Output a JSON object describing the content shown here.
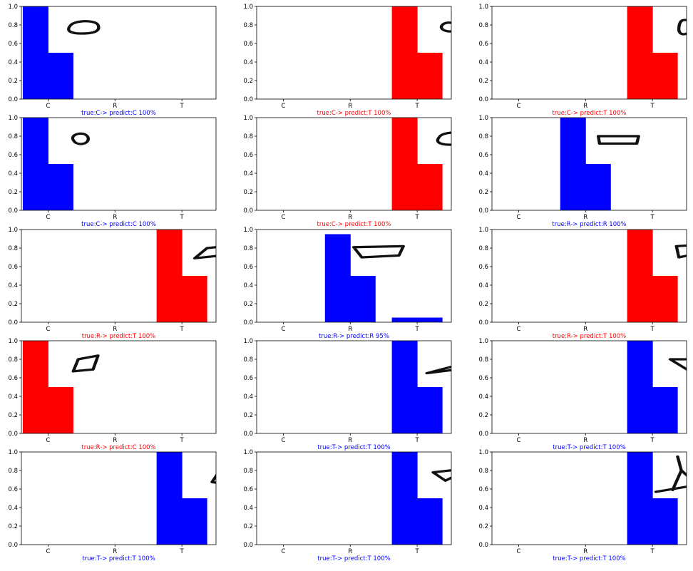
{
  "chart_data": [
    {
      "type": "bar",
      "categories": [
        "C",
        "R",
        "T"
      ],
      "values": [
        1.0,
        0.0,
        0.0
      ],
      "bar_color": "#0000ff",
      "ylim": [
        0,
        1
      ],
      "yticks": [
        "0.0",
        "0.2",
        "0.4",
        "0.6",
        "0.8",
        "1.0"
      ],
      "sketch": "oval",
      "caption": "true:C->  predict:C 100%",
      "caption_color": "#0000ff"
    },
    {
      "type": "bar",
      "categories": [
        "C",
        "R",
        "T"
      ],
      "values": [
        0.0,
        0.0,
        1.0
      ],
      "bar_color": "#ff0000",
      "ylim": [
        0,
        1
      ],
      "yticks": [
        "0.0",
        "0.2",
        "0.4",
        "0.6",
        "0.8",
        "1.0"
      ],
      "sketch": "small-oval",
      "caption": "true:C->  predict:T 100%",
      "caption_color": "#ff0000"
    },
    {
      "type": "bar",
      "categories": [
        "C",
        "R",
        "T"
      ],
      "values": [
        0.0,
        0.0,
        1.0
      ],
      "bar_color": "#ff0000",
      "ylim": [
        0,
        1
      ],
      "yticks": [
        "0.0",
        "0.2",
        "0.4",
        "0.6",
        "0.8",
        "1.0"
      ],
      "sketch": "upright-oval",
      "caption": "true:C->  predict:T 100%",
      "caption_color": "#ff0000"
    },
    {
      "type": "bar",
      "categories": [
        "C",
        "R",
        "T"
      ],
      "values": [
        1.0,
        0.0,
        0.0
      ],
      "bar_color": "#0000ff",
      "ylim": [
        0,
        1
      ],
      "yticks": [
        "0.0",
        "0.2",
        "0.4",
        "0.6",
        "0.8",
        "1.0"
      ],
      "sketch": "circle",
      "caption": "true:C->  predict:C 100%",
      "caption_color": "#0000ff"
    },
    {
      "type": "bar",
      "categories": [
        "C",
        "R",
        "T"
      ],
      "values": [
        0.0,
        0.0,
        1.0
      ],
      "bar_color": "#ff0000",
      "ylim": [
        0,
        1
      ],
      "yticks": [
        "0.0",
        "0.2",
        "0.4",
        "0.6",
        "0.8",
        "1.0"
      ],
      "sketch": "oval",
      "caption": "true:C->  predict:T 100%",
      "caption_color": "#ff0000"
    },
    {
      "type": "bar",
      "categories": [
        "C",
        "R",
        "T"
      ],
      "values": [
        0.0,
        1.0,
        0.0
      ],
      "bar_color": "#0000ff",
      "ylim": [
        0,
        1
      ],
      "yticks": [
        "0.0",
        "0.2",
        "0.4",
        "0.6",
        "0.8",
        "1.0"
      ],
      "sketch": "rectangle",
      "caption": "true:R->  predict:R 100%",
      "caption_color": "#0000ff"
    },
    {
      "type": "bar",
      "categories": [
        "C",
        "R",
        "T"
      ],
      "values": [
        0.0,
        0.0,
        1.0
      ],
      "bar_color": "#ff0000",
      "ylim": [
        0,
        1
      ],
      "yticks": [
        "0.0",
        "0.2",
        "0.4",
        "0.6",
        "0.8",
        "1.0"
      ],
      "sketch": "parallelogram",
      "caption": "true:R->  predict:T 100%",
      "caption_color": "#ff0000"
    },
    {
      "type": "bar",
      "categories": [
        "C",
        "R",
        "T"
      ],
      "values": [
        0.0,
        0.95,
        0.05
      ],
      "bar_color": "#0000ff",
      "ylim": [
        0,
        1
      ],
      "yticks": [
        "0.0",
        "0.2",
        "0.4",
        "0.6",
        "0.8",
        "1.0"
      ],
      "sketch": "wide-quad",
      "caption": "true:R->  predict:R 95%",
      "caption_color": "#0000ff"
    },
    {
      "type": "bar",
      "categories": [
        "C",
        "R",
        "T"
      ],
      "values": [
        0.0,
        0.0,
        1.0
      ],
      "bar_color": "#ff0000",
      "ylim": [
        0,
        1
      ],
      "yticks": [
        "0.0",
        "0.2",
        "0.4",
        "0.6",
        "0.8",
        "1.0"
      ],
      "sketch": "small-square",
      "caption": "true:R->  predict:T 100%",
      "caption_color": "#ff0000"
    },
    {
      "type": "bar",
      "categories": [
        "C",
        "R",
        "T"
      ],
      "values": [
        1.0,
        0.0,
        0.0
      ],
      "bar_color": "#ff0000",
      "ylim": [
        0,
        1
      ],
      "yticks": [
        "0.0",
        "0.2",
        "0.4",
        "0.6",
        "0.8",
        "1.0"
      ],
      "sketch": "tilted-square",
      "caption": "true:R->  predict:C 100%",
      "caption_color": "#ff0000"
    },
    {
      "type": "bar",
      "categories": [
        "C",
        "R",
        "T"
      ],
      "values": [
        0.0,
        0.0,
        1.0
      ],
      "bar_color": "#0000ff",
      "ylim": [
        0,
        1
      ],
      "yticks": [
        "0.0",
        "0.2",
        "0.4",
        "0.6",
        "0.8",
        "1.0"
      ],
      "sketch": "flat-triangle",
      "caption": "true:T->  predict:T 100%",
      "caption_color": "#0000ff"
    },
    {
      "type": "bar",
      "categories": [
        "C",
        "R",
        "T"
      ],
      "values": [
        0.0,
        0.0,
        1.0
      ],
      "bar_color": "#0000ff",
      "ylim": [
        0,
        1
      ],
      "yticks": [
        "0.0",
        "0.2",
        "0.4",
        "0.6",
        "0.8",
        "1.0"
      ],
      "sketch": "down-triangle",
      "caption": "true:T->  predict:T 100%",
      "caption_color": "#0000ff"
    },
    {
      "type": "bar",
      "categories": [
        "C",
        "R",
        "T"
      ],
      "values": [
        0.0,
        0.0,
        1.0
      ],
      "bar_color": "#0000ff",
      "ylim": [
        0,
        1
      ],
      "yticks": [
        "0.0",
        "0.2",
        "0.4",
        "0.6",
        "0.8",
        "1.0"
      ],
      "sketch": "small-triangle",
      "caption": "true:T->  predict:T 100%",
      "caption_color": "#0000ff"
    },
    {
      "type": "bar",
      "categories": [
        "C",
        "R",
        "T"
      ],
      "values": [
        0.0,
        0.0,
        1.0
      ],
      "bar_color": "#0000ff",
      "ylim": [
        0,
        1
      ],
      "yticks": [
        "0.0",
        "0.2",
        "0.4",
        "0.6",
        "0.8",
        "1.0"
      ],
      "sketch": "inverted-triangle",
      "caption": "true:T->  predict:T 100%",
      "caption_color": "#0000ff"
    },
    {
      "type": "bar",
      "categories": [
        "C",
        "R",
        "T"
      ],
      "values": [
        0.0,
        0.0,
        1.0
      ],
      "bar_color": "#0000ff",
      "ylim": [
        0,
        1
      ],
      "yticks": [
        "0.0",
        "0.2",
        "0.4",
        "0.6",
        "0.8",
        "1.0"
      ],
      "sketch": "crossed-triangle",
      "caption": "true:T->  predict:T 100%",
      "caption_color": "#0000ff"
    }
  ]
}
